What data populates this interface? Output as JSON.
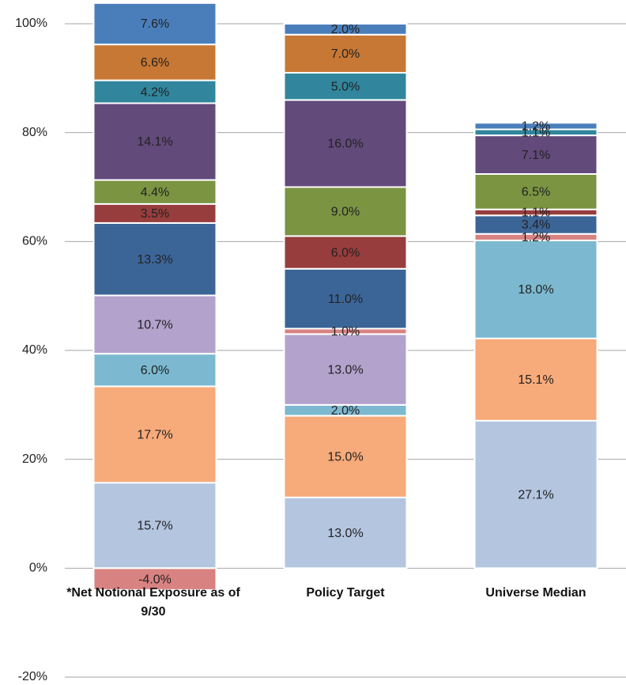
{
  "chart_data": {
    "type": "stacked_bar",
    "categories": [
      "*Net Notional Exposure as of 9/30",
      "Policy Target",
      "Universe Median"
    ],
    "series": [
      {
        "color": "#b4c5e0",
        "values": [
          15.7,
          13.0,
          27.1
        ],
        "value_labels": [
          "15.7%",
          "13.0%",
          "27.1%"
        ]
      },
      {
        "color": "#f7aa7a",
        "values": [
          17.7,
          15.0,
          15.1
        ],
        "value_labels": [
          "17.7%",
          "15.0%",
          "15.1%"
        ]
      },
      {
        "color": "#7cb9d0",
        "values": [
          6.0,
          2.0,
          18.0
        ],
        "value_labels": [
          "6.0%",
          "2.0%",
          "18.0%"
        ]
      },
      {
        "color": "#b3a2cc",
        "values": [
          10.7,
          13.0,
          null
        ],
        "value_labels": [
          "10.7%",
          "13.0%",
          null
        ]
      },
      {
        "color": "#d98282",
        "values": [
          -4.0,
          1.0,
          1.2
        ],
        "value_labels": [
          "-4.0%",
          "1.0%",
          "1.2%"
        ]
      },
      {
        "color": "#3c6597",
        "values": [
          13.3,
          11.0,
          3.4
        ],
        "value_labels": [
          "13.3%",
          "11.0%",
          "3.4%"
        ]
      },
      {
        "color": "#983d3d",
        "values": [
          3.5,
          6.0,
          1.1
        ],
        "value_labels": [
          "3.5%",
          "6.0%",
          "1.1%"
        ]
      },
      {
        "color": "#7a9442",
        "values": [
          4.4,
          9.0,
          6.5
        ],
        "value_labels": [
          "4.4%",
          "9.0%",
          "6.5%"
        ]
      },
      {
        "color": "#624a7b",
        "values": [
          14.1,
          16.0,
          7.1
        ],
        "value_labels": [
          "14.1%",
          "16.0%",
          "7.1%"
        ]
      },
      {
        "color": "#31869d",
        "values": [
          4.2,
          5.0,
          1.1
        ],
        "value_labels": [
          "4.2%",
          "5.0%",
          "1.1%"
        ]
      },
      {
        "color": "#c77834",
        "values": [
          6.6,
          7.0,
          null
        ],
        "value_labels": [
          "6.6%",
          "7.0%",
          null
        ]
      },
      {
        "color": "#4a7ebb",
        "values": [
          7.6,
          2.0,
          1.2
        ],
        "value_labels": [
          "7.6%",
          "2.0%",
          "1.2%"
        ]
      }
    ],
    "ylim": [
      -20,
      100
    ],
    "yticks": [
      {
        "value": -20,
        "label": "-20%"
      },
      {
        "value": 0,
        "label": "0%"
      },
      {
        "value": 20,
        "label": "20%"
      },
      {
        "value": 40,
        "label": "40%"
      },
      {
        "value": 60,
        "label": "60%"
      },
      {
        "value": 80,
        "label": "80%"
      },
      {
        "value": 100,
        "label": "100%"
      }
    ],
    "grid": true
  }
}
